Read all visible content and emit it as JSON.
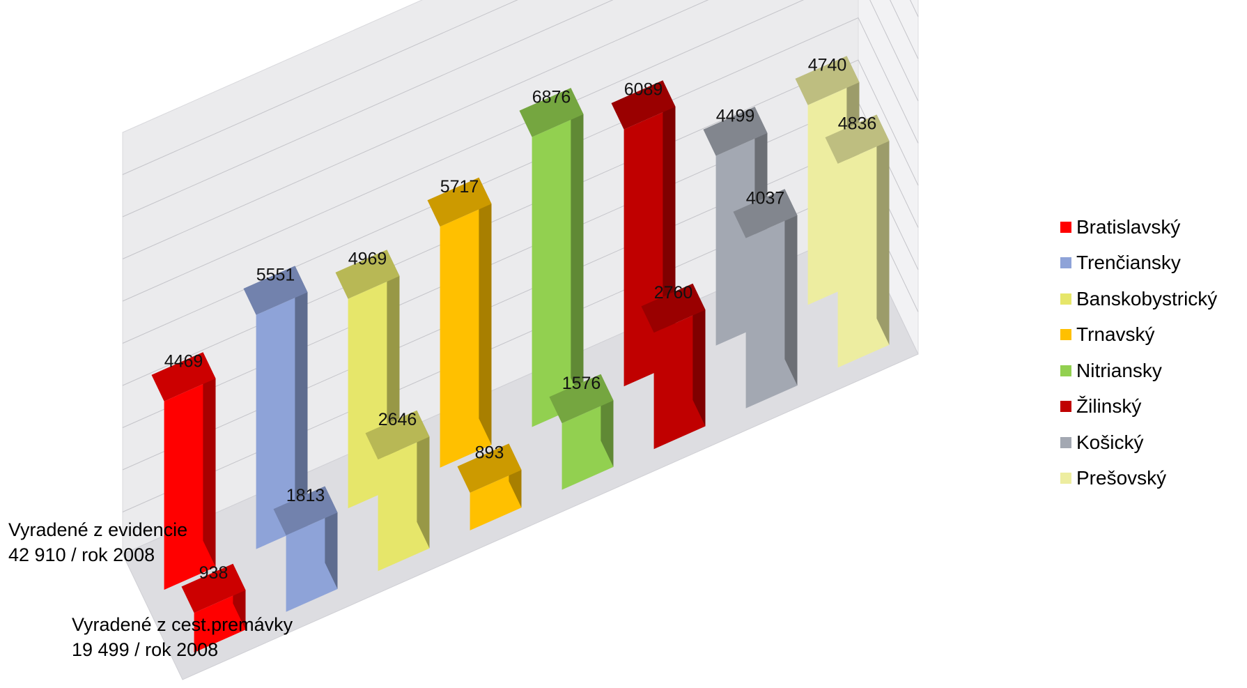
{
  "chart_data": {
    "type": "bar",
    "subtype": "3d-column",
    "grid": true,
    "legend_position": "right",
    "categories": [
      "Bratislavský",
      "Trenčiansky",
      "Banskobystrický",
      "Trnavský",
      "Nitriansky",
      "Žilinský",
      "Košický",
      "Prešovský"
    ],
    "colors": [
      "#ff0000",
      "#8ea3d8",
      "#e6e66a",
      "#ffc000",
      "#92d050",
      "#c00000",
      "#a3a8b2",
      "#ededa0"
    ],
    "series": [
      {
        "label_line1": "Vyradené z evidencie",
        "label_line2": "42 910 / rok 2008",
        "values": [
          4469,
          5551,
          4969,
          5717,
          6876,
          6089,
          4499,
          4740
        ]
      },
      {
        "label_line1": "Vyradené z cest.premávky",
        "label_line2": "19 499 / rok 2008",
        "values": [
          938,
          1813,
          2646,
          893,
          1576,
          2760,
          4037,
          4836
        ]
      }
    ]
  }
}
